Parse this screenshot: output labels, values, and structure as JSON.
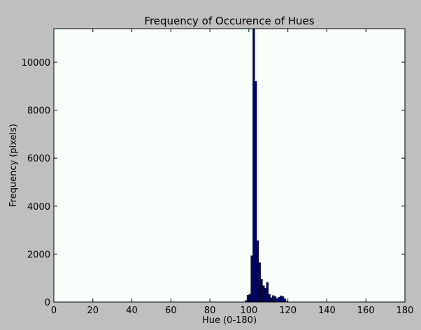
{
  "chart_data": {
    "type": "bar",
    "title": "Frequency of Occurence of Hues",
    "xlabel": "Hue (0-180)",
    "ylabel": "Frequency (pixels)",
    "xlim": [
      0,
      180
    ],
    "ylim": [
      0,
      11400
    ],
    "xticks": [
      0,
      20,
      40,
      60,
      80,
      100,
      120,
      140,
      160,
      180
    ],
    "yticks": [
      0,
      2000,
      4000,
      6000,
      8000,
      10000
    ],
    "bin_width": 1,
    "grid": false,
    "bar_color": "#00008b",
    "edge_color": "#000000",
    "plot_background": "#f8fffb",
    "figure_background": "#bfbfbf",
    "x": [
      98,
      99,
      100,
      101,
      102,
      103,
      104,
      105,
      106,
      107,
      108,
      109,
      110,
      111,
      112,
      113,
      114,
      115,
      116,
      117,
      118,
      119
    ],
    "values": [
      60,
      280,
      330,
      1930,
      11400,
      9200,
      2560,
      1640,
      950,
      680,
      580,
      820,
      320,
      180,
      270,
      230,
      150,
      200,
      260,
      230,
      130,
      20
    ]
  }
}
